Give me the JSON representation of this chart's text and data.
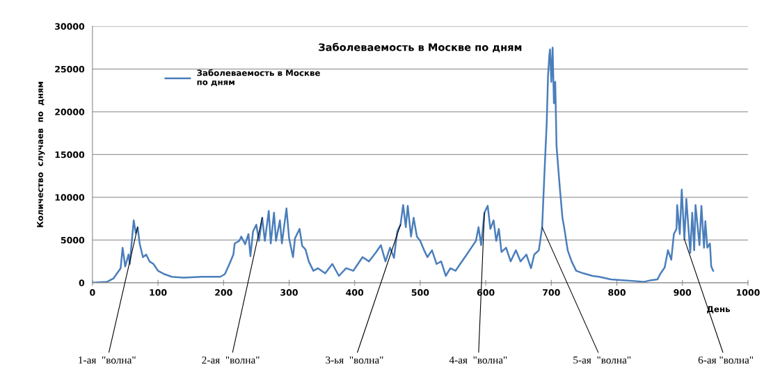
{
  "chart_data": {
    "type": "line",
    "title": "Заболеваемость в Москве по дням",
    "xlabel": "День",
    "ylabel": "Количество  случаев  по  дням",
    "xlim": [
      0,
      1000
    ],
    "xticks": [
      0,
      100,
      200,
      300,
      400,
      500,
      600,
      700,
      800,
      900,
      1000
    ],
    "ylim": [
      0,
      30000
    ],
    "yticks": [
      0,
      5000,
      10000,
      15000,
      20000,
      25000,
      30000
    ],
    "grid": "y",
    "legend": "top left",
    "marker": "none",
    "line_style": "solid",
    "annotations": [
      {
        "text": "1-ая  \"волна\"",
        "x": 69,
        "y": 6500
      },
      {
        "text": "2-ая  \"волна\"",
        "x": 259,
        "y": 7600
      },
      {
        "text": "3-ья  \"волна\"",
        "x": 470,
        "y": 6800
      },
      {
        "text": "4-ая  \"волна\"",
        "x": 598,
        "y": 8200
      },
      {
        "text": "5-ая  \"волна\"",
        "x": 686,
        "y": 6500
      },
      {
        "text": "6-ая \"волна\"",
        "x": 903,
        "y": 5100
      }
    ],
    "series": [
      {
        "name": "Заболеваемость в Москве\nпо дням",
        "color": "#4a7ebb",
        "x": [
          0,
          22,
          32,
          43,
          46,
          50,
          55,
          57,
          61,
          63,
          66,
          69,
          72,
          77,
          82,
          87,
          93,
          100,
          110,
          121,
          139,
          167,
          195,
          202,
          209,
          215,
          217,
          224,
          227,
          233,
          238,
          241,
          245,
          250,
          254,
          259,
          263,
          269,
          272,
          277,
          280,
          286,
          289,
          296,
          300,
          306,
          309,
          316,
          320,
          325,
          330,
          337,
          344,
          355,
          366,
          376,
          387,
          398,
          412,
          422,
          433,
          440,
          447,
          454,
          460,
          465,
          470,
          474,
          478,
          481,
          486,
          490,
          495,
          500,
          506,
          511,
          518,
          525,
          532,
          539,
          546,
          554,
          561,
          571,
          578,
          585,
          589,
          593,
          598,
          603,
          607,
          612,
          616,
          620,
          624,
          631,
          638,
          646,
          653,
          662,
          669,
          674,
          681,
          686,
          690,
          693,
          695,
          697,
          698,
          700,
          702,
          704,
          706,
          708,
          710,
          713,
          717,
          720,
          725,
          731,
          738,
          749,
          763,
          773,
          791,
          809,
          827,
          841,
          852,
          862,
          866,
          873,
          878,
          883,
          887,
          891,
          892,
          896,
          899,
          903,
          906,
          912,
          915,
          918,
          920,
          926,
          929,
          933,
          935,
          938,
          942,
          944,
          947
        ],
        "values": [
          0,
          100,
          500,
          1700,
          4100,
          1900,
          3300,
          2200,
          5700,
          7300,
          5800,
          6500,
          4600,
          3000,
          3300,
          2500,
          2200,
          1400,
          1000,
          700,
          600,
          700,
          700,
          1000,
          2200,
          3300,
          4600,
          4900,
          5400,
          4500,
          5700,
          3100,
          6000,
          6800,
          4900,
          7600,
          4900,
          8400,
          4600,
          8200,
          4900,
          7300,
          4600,
          8700,
          5200,
          3000,
          5200,
          6300,
          4300,
          3900,
          2500,
          1400,
          1700,
          1100,
          2200,
          800,
          1700,
          1400,
          3000,
          2500,
          3600,
          4400,
          2500,
          4100,
          2900,
          6000,
          6800,
          9100,
          6500,
          9000,
          5400,
          7600,
          5400,
          4900,
          3800,
          3000,
          3800,
          2200,
          2500,
          800,
          1700,
          1400,
          2200,
          3300,
          4100,
          4900,
          6500,
          4400,
          8200,
          9000,
          6300,
          7300,
          4900,
          6300,
          3600,
          4100,
          2500,
          3800,
          2500,
          3300,
          1700,
          3300,
          3800,
          6500,
          13600,
          18700,
          24200,
          26600,
          27300,
          23500,
          27500,
          21000,
          23500,
          16000,
          14000,
          11100,
          7600,
          6300,
          3800,
          2500,
          1400,
          1100,
          800,
          700,
          400,
          300,
          200,
          100,
          300,
          400,
          1000,
          1800,
          3800,
          2700,
          5700,
          6300,
          9100,
          5700,
          10900,
          5100,
          9800,
          3500,
          8200,
          3800,
          9100,
          4400,
          9000,
          4100,
          7200,
          4100,
          4600,
          1900,
          1400
        ]
      }
    ]
  }
}
